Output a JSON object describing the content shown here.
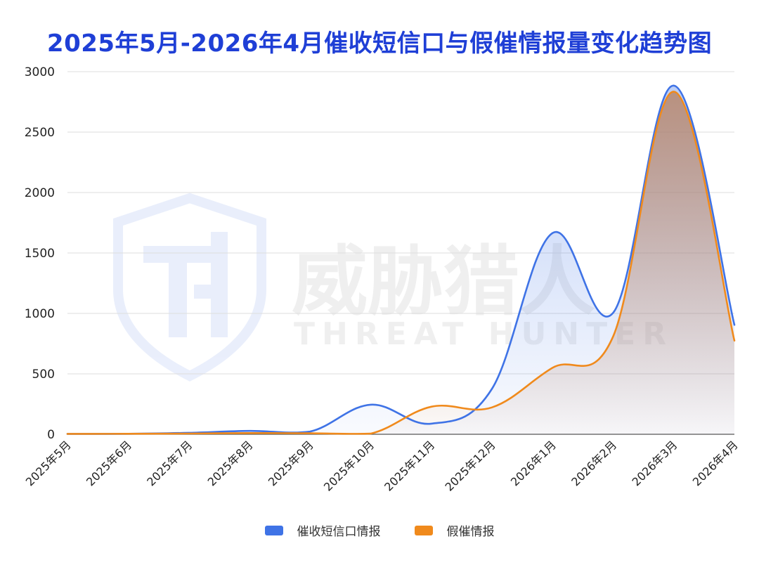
{
  "chart_data": {
    "type": "line",
    "title": "2025年5月-2026年4月催收短信口与假催情报量变化趋势图",
    "categories": [
      "2025年5月",
      "2025年6月",
      "2025年7月",
      "2025年8月",
      "2025年9月",
      "2025年10月",
      "2025年11月",
      "2025年12月",
      "2026年1月",
      "2026年2月",
      "2026年3月",
      "2026年4月"
    ],
    "series": [
      {
        "name": "催收短信口情报",
        "color": "#3f73e6",
        "values": [
          3,
          4,
          12,
          28,
          22,
          245,
          88,
          375,
          1665,
          1005,
          2885,
          905
        ]
      },
      {
        "name": "假催情报",
        "color": "#f08a1c",
        "values": [
          3,
          4,
          6,
          10,
          8,
          5,
          228,
          222,
          550,
          810,
          2835,
          775
        ]
      }
    ],
    "ylim": [
      0,
      3000
    ],
    "yticks": [
      0,
      500,
      1000,
      1500,
      2000,
      2500,
      3000
    ],
    "grid": true,
    "legend_position": "bottom-center"
  },
  "watermark": {
    "text_cn": "威胁猎人",
    "text_en": "THREAT HUNTER"
  }
}
